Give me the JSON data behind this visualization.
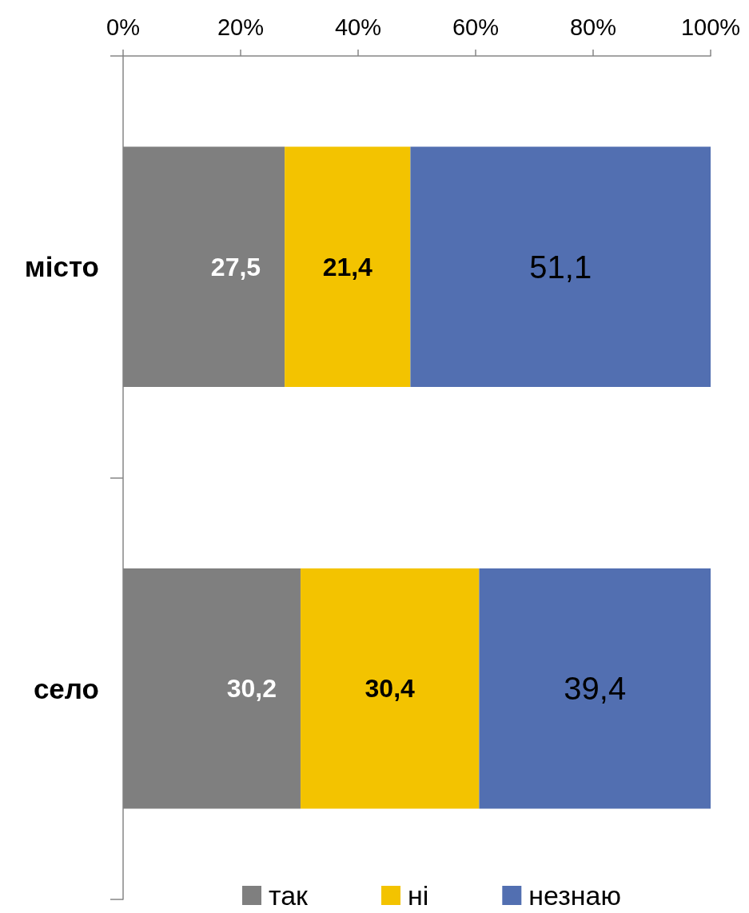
{
  "chart_data": {
    "type": "bar",
    "orientation": "horizontal",
    "stacked": true,
    "categories": [
      "місто",
      "село"
    ],
    "series": [
      {
        "name": "так",
        "color": "#7f7f7f",
        "values": [
          27.5,
          30.2
        ],
        "value_labels": [
          "27,5",
          "30,2"
        ]
      },
      {
        "name": "ні",
        "color": "#f3c300",
        "values": [
          21.4,
          30.4
        ],
        "value_labels": [
          "21,4",
          "30,4"
        ]
      },
      {
        "name": "незнаю",
        "color": "#526fb1",
        "values": [
          51.1,
          39.4
        ],
        "value_labels": [
          "51,1",
          "39,4"
        ]
      }
    ],
    "xlim": [
      0,
      100
    ],
    "xticks": [
      {
        "value": 0,
        "label": "0%"
      },
      {
        "value": 20,
        "label": "20%"
      },
      {
        "value": 40,
        "label": "40%"
      },
      {
        "value": 60,
        "label": "60%"
      },
      {
        "value": 80,
        "label": "80%"
      },
      {
        "value": 100,
        "label": "100%"
      }
    ],
    "grid": false,
    "legend": "bottom"
  }
}
